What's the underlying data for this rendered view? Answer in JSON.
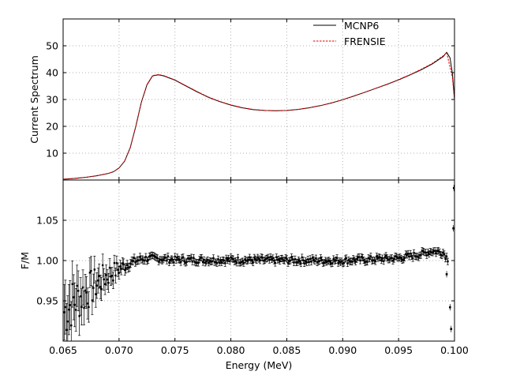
{
  "chart_data": [
    {
      "type": "line",
      "panel": "top",
      "xlabel": "",
      "ylabel": "Current Spectrum",
      "xlim": [
        0.065,
        0.1
      ],
      "ylim": [
        0,
        60
      ],
      "yticks": [
        10,
        20,
        30,
        40,
        50
      ],
      "ytick_labels": [
        "10",
        "20",
        "30",
        "40",
        "50"
      ],
      "grid": true,
      "legend_position": "top-right",
      "x": [
        0.065,
        0.066,
        0.067,
        0.068,
        0.069,
        0.0695,
        0.07,
        0.0705,
        0.071,
        0.0715,
        0.072,
        0.0725,
        0.073,
        0.0735,
        0.074,
        0.075,
        0.076,
        0.077,
        0.078,
        0.079,
        0.08,
        0.081,
        0.082,
        0.083,
        0.084,
        0.085,
        0.086,
        0.087,
        0.088,
        0.089,
        0.09,
        0.091,
        0.092,
        0.093,
        0.094,
        0.095,
        0.096,
        0.097,
        0.098,
        0.099,
        0.0993,
        0.0996,
        0.0998,
        0.1
      ],
      "series": [
        {
          "name": "MCNP6",
          "color": "#000000",
          "style": "solid",
          "values": [
            0.3,
            0.6,
            1.0,
            1.6,
            2.4,
            3.1,
            4.5,
            7.0,
            12.0,
            20.0,
            29.0,
            35.5,
            38.8,
            39.2,
            38.8,
            37.2,
            35.0,
            32.8,
            30.8,
            29.2,
            27.9,
            26.9,
            26.2,
            25.9,
            25.8,
            25.9,
            26.3,
            26.9,
            27.7,
            28.7,
            29.9,
            31.3,
            32.7,
            34.2,
            35.7,
            37.3,
            39.1,
            41.0,
            43.2,
            46.0,
            47.6,
            45.5,
            40.0,
            30.0
          ]
        },
        {
          "name": "FRENSIE",
          "color": "#dd0000",
          "style": "dashed",
          "values": [
            0.3,
            0.6,
            1.0,
            1.6,
            2.4,
            3.1,
            4.5,
            7.0,
            12.0,
            20.0,
            29.0,
            35.6,
            38.9,
            39.3,
            38.9,
            37.3,
            35.1,
            32.9,
            30.9,
            29.3,
            28.0,
            27.0,
            26.3,
            25.9,
            25.8,
            25.9,
            26.3,
            26.9,
            27.7,
            28.7,
            29.9,
            31.3,
            32.7,
            34.2,
            35.7,
            37.4,
            39.2,
            41.2,
            43.4,
            46.3,
            47.5,
            42.0,
            38.5,
            30.0
          ]
        }
      ]
    },
    {
      "type": "scatter",
      "panel": "bottom",
      "xlabel": "Energy (MeV)",
      "ylabel": "F/M",
      "xlim": [
        0.065,
        0.1
      ],
      "ylim": [
        0.9,
        1.1
      ],
      "xticks": [
        0.065,
        0.07,
        0.075,
        0.08,
        0.085,
        0.09,
        0.095,
        0.1
      ],
      "xtick_labels": [
        "0.065",
        "0.070",
        "0.075",
        "0.080",
        "0.085",
        "0.090",
        "0.095",
        "0.100"
      ],
      "yticks": [
        0.95,
        1.0,
        1.05
      ],
      "ytick_labels": [
        "0.95",
        "1.00",
        "1.05"
      ],
      "grid": true,
      "error_bars": true,
      "trend": {
        "x": [
          0.065,
          0.066,
          0.067,
          0.068,
          0.069,
          0.07,
          0.071,
          0.072,
          0.073,
          0.075,
          0.09,
          0.095,
          0.097,
          0.098,
          0.099,
          0.0995
        ],
        "y": [
          0.935,
          0.95,
          0.96,
          0.972,
          0.982,
          0.99,
          0.997,
          1.002,
          1.003,
          1.001,
          1.0,
          1.003,
          1.008,
          1.012,
          1.01,
          1.0
        ]
      },
      "noise_amplitude": {
        "x": [
          0.065,
          0.067,
          0.069,
          0.07,
          0.071,
          0.073,
          0.1
        ],
        "y": [
          0.035,
          0.025,
          0.015,
          0.01,
          0.005,
          0.004,
          0.004
        ]
      },
      "error_amplitude": {
        "x": [
          0.065,
          0.067,
          0.069,
          0.07,
          0.071,
          0.073,
          0.1
        ],
        "y": [
          0.035,
          0.02,
          0.012,
          0.008,
          0.005,
          0.004,
          0.004
        ]
      },
      "edge_points": [
        {
          "x": 0.0993,
          "y": 0.983
        },
        {
          "x": 0.0996,
          "y": 0.942
        },
        {
          "x": 0.0997,
          "y": 0.915
        },
        {
          "x": 0.0999,
          "y": 1.04
        },
        {
          "x": 0.09995,
          "y": 1.09
        }
      ]
    }
  ]
}
